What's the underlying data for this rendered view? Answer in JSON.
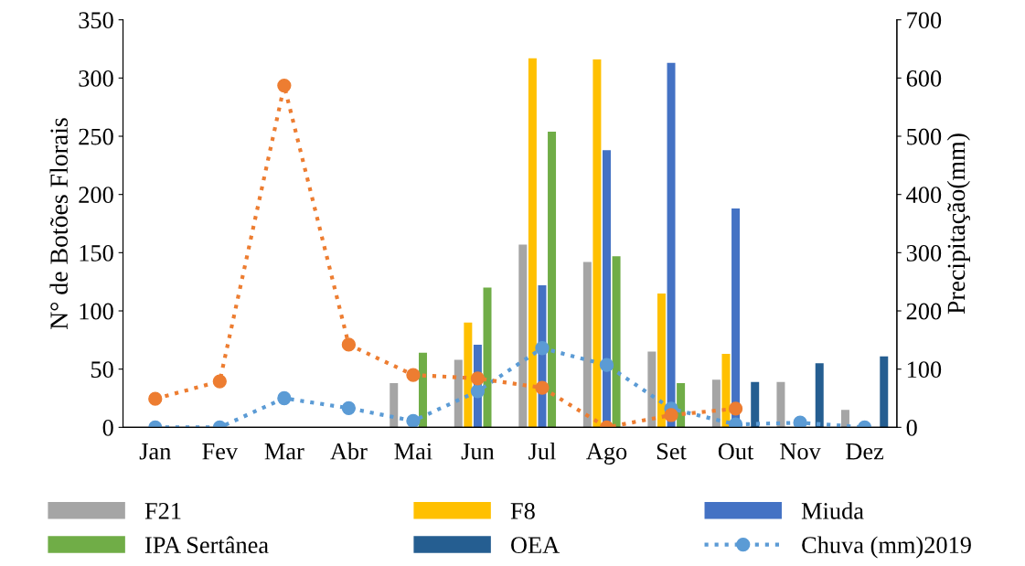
{
  "chart_data": {
    "type": "bar",
    "categories": [
      "Jan",
      "Fev",
      "Mar",
      "Abr",
      "Mai",
      "Jun",
      "Jul",
      "Ago",
      "Set",
      "Out",
      "Nov",
      "Dez"
    ],
    "ylabel": "N° de Botões Florais",
    "y2label": "Precipitação(mm)",
    "ylim": [
      0,
      350
    ],
    "yticks": [
      0,
      50,
      100,
      150,
      200,
      250,
      300,
      350
    ],
    "y2lim": [
      0,
      700
    ],
    "y2ticks": [
      0,
      100,
      200,
      300,
      400,
      500,
      600,
      700
    ],
    "legend": "bottom",
    "grid": false,
    "series": [
      {
        "name": "F21",
        "color": "#a5a5a5",
        "values": [
          null,
          null,
          null,
          null,
          38,
          58,
          157,
          142,
          65,
          41,
          39,
          15
        ]
      },
      {
        "name": "F8",
        "color": "#ffc000",
        "values": [
          null,
          null,
          null,
          null,
          null,
          90,
          317,
          316,
          115,
          63,
          null,
          null
        ]
      },
      {
        "name": "Miuda",
        "color": "#4472c4",
        "values": [
          null,
          null,
          null,
          null,
          null,
          71,
          122,
          238,
          313,
          188,
          null,
          null
        ]
      },
      {
        "name": "IPA Sertânea",
        "color": "#70ad47",
        "values": [
          null,
          null,
          null,
          null,
          64,
          120,
          254,
          147,
          38,
          null,
          null,
          null
        ]
      },
      {
        "name": "OEA",
        "color": "#255e91",
        "values": [
          null,
          null,
          null,
          null,
          null,
          null,
          null,
          null,
          null,
          39,
          55,
          61
        ]
      },
      {
        "name": "Chuva (mm)2019",
        "type": "line",
        "axis": "y2",
        "color": "#5b9bd5",
        "line_style": "dotted",
        "marker": "circle",
        "values": [
          0,
          0,
          50,
          33,
          11,
          62,
          136,
          107,
          32,
          5,
          8,
          0
        ]
      },
      {
        "type": "line",
        "axis": "y2",
        "color": "#ed7d31",
        "line_style": "dotted",
        "marker": "circle",
        "values": [
          49,
          79,
          587,
          142,
          90,
          84,
          68,
          0,
          21,
          32,
          null,
          null
        ]
      }
    ]
  }
}
